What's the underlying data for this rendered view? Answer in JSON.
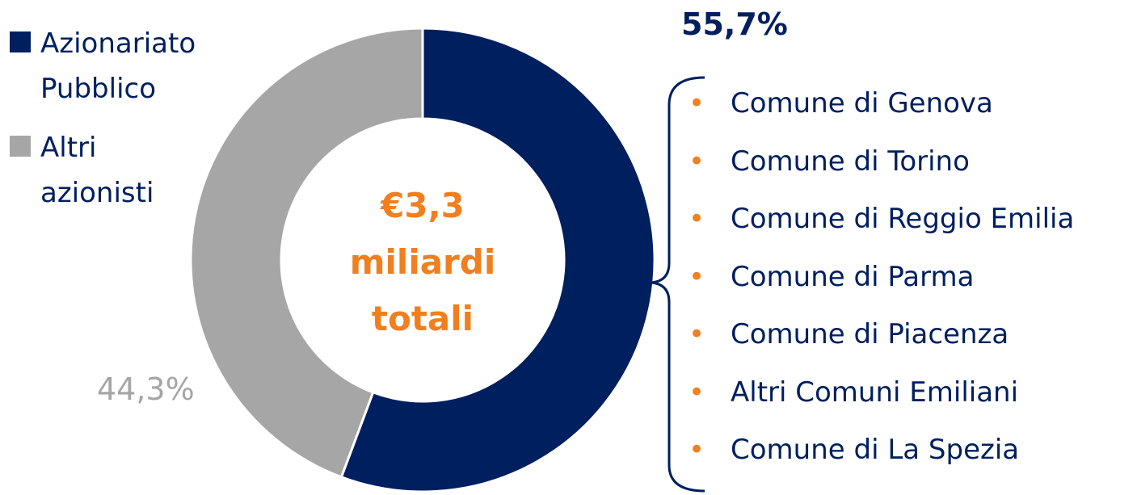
{
  "chart_data": {
    "type": "pie",
    "donut": true,
    "categories": [
      "Azionariato Pubblico",
      "Altri azionisti"
    ],
    "values": [
      55.7,
      44.3
    ],
    "value_labels": [
      "55,7%",
      "44,3%"
    ],
    "colors": [
      "#001f5f",
      "#a6a6a6"
    ],
    "center_label": "€3,3 miliardi totali",
    "public_shareholders": [
      "Comune di Genova",
      "Comune di Torino",
      "Comune di Reggio Emilia",
      "Comune di Parma",
      "Comune di Piacenza",
      "Altri Comuni Emiliani",
      "Comune di La Spezia"
    ]
  }
}
